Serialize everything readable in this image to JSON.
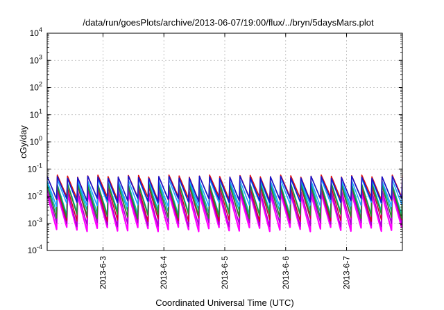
{
  "chart_data": {
    "type": "line",
    "title": "/data/run/goesPlots/archive/2013-06-07/19:00/flux/../bryn/5daysMars.plot",
    "xlabel": "Coordinated Universal Time (UTC)",
    "ylabel": "cGy/day",
    "yscale": "log",
    "ylim": [
      0.0001,
      10000
    ],
    "xlim": [
      "2013-06-02 02:00",
      "2013-06-07 22:00"
    ],
    "x_ticks": [
      "2013-6-3",
      "2013-6-4",
      "2013-6-5",
      "2013-6-6",
      "2013-6-7"
    ],
    "y_ticks": [
      {
        "base": "10",
        "exp": "4",
        "value": 10000
      },
      {
        "base": "10",
        "exp": "3",
        "value": 1000
      },
      {
        "base": "10",
        "exp": "2",
        "value": 100
      },
      {
        "base": "10",
        "exp": "1",
        "value": 10
      },
      {
        "base": "10",
        "exp": "0",
        "value": 1
      },
      {
        "base": "10",
        "exp": "-1",
        "value": 0.1
      },
      {
        "base": "10",
        "exp": "-2",
        "value": 0.01
      },
      {
        "base": "10",
        "exp": "-3",
        "value": 0.001
      },
      {
        "base": "10",
        "exp": "-4",
        "value": 0.0001
      }
    ],
    "grid": true,
    "cycle_hours": 4,
    "series": [
      {
        "color": "#ff00ff",
        "peak": 0.012,
        "trough": 0.0006
      },
      {
        "color": "#aa00cc",
        "peak": 0.016,
        "trough": 0.0009
      },
      {
        "color": "#cc0033",
        "peak": 0.022,
        "trough": 0.0014
      },
      {
        "color": "#00b8b8",
        "peak": 0.03,
        "trough": 0.0025
      },
      {
        "color": "#2a8a2a",
        "peak": 0.026,
        "trough": 0.0018
      },
      {
        "color": "#1fa0ff",
        "peak": 0.04,
        "trough": 0.005
      },
      {
        "color": "#e01010",
        "peak": 0.055,
        "trough": 0.008
      },
      {
        "color": "#1515cc",
        "peak": 0.05,
        "trough": 0.007
      }
    ]
  }
}
